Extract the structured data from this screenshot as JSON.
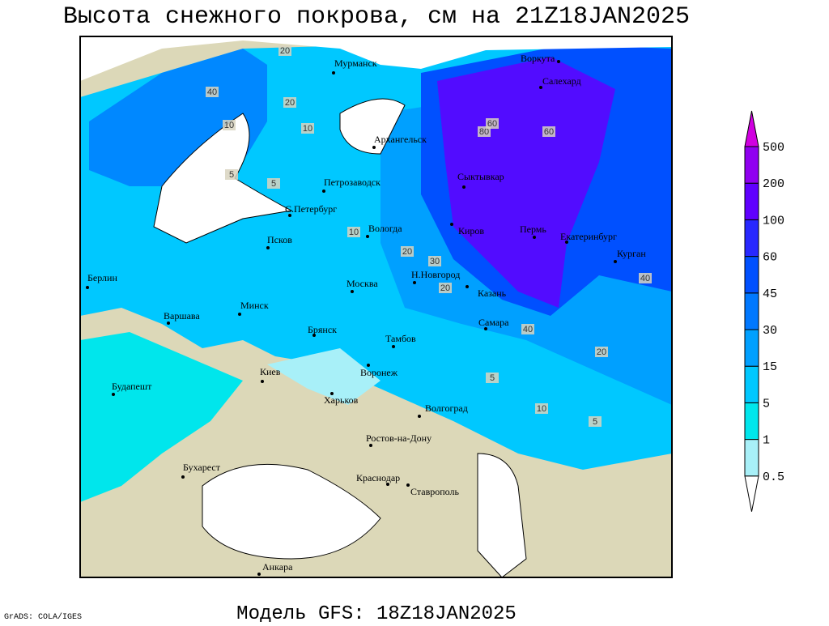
{
  "title": "Высота снежного покрова, см на 21Z18JAN2025",
  "footer": "Модель GFS: 18Z18JAN2025",
  "credit": "GrADS: COLA/IGES",
  "legend": {
    "levels": [
      0.5,
      1,
      5,
      15,
      30,
      45,
      60,
      100,
      200,
      500
    ],
    "colors": [
      "#ffffff",
      "#a8f0f8",
      "#00e6ec",
      "#00c8ff",
      "#00a0ff",
      "#0078ff",
      "#0050ff",
      "#2828ff",
      "#6000ff",
      "#9000f0",
      "#d000e0"
    ]
  },
  "cities": [
    "Мурманск",
    "Воркута",
    "Салехард",
    "Архангельск",
    "Петрозаводск",
    "Сыктывкар",
    "С.Петербург",
    "Вологда",
    "Киров",
    "Пермь",
    "Екатеринбург",
    "Курган",
    "Псков",
    "Н.Новгород",
    "Казань",
    "Берлин",
    "Москва",
    "Минск",
    "Варшава",
    "Брянск",
    "Тамбов",
    "Самара",
    "Киев",
    "Воронеж",
    "Будапешт",
    "Харьков",
    "Волгоград",
    "Ростов-на-Дону",
    "Бухарест",
    "Краснодар",
    "Ставрополь",
    "Анкара"
  ],
  "contour_labels": [
    20,
    40,
    20,
    10,
    60,
    40,
    20,
    10,
    5,
    5,
    40,
    20,
    30,
    20,
    10,
    5,
    5,
    10,
    80,
    60
  ]
}
